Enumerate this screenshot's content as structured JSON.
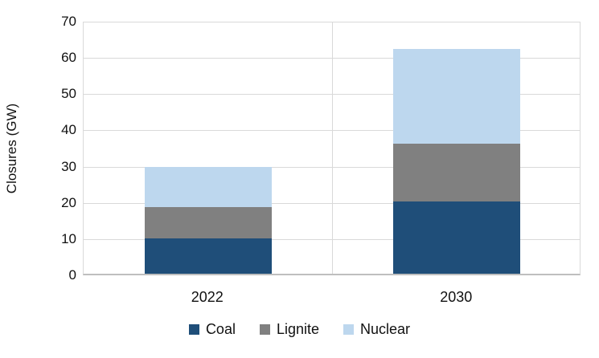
{
  "chart_data": {
    "type": "bar",
    "stacked": true,
    "title": "",
    "xlabel": "",
    "ylabel": "Closures (GW)",
    "ylim": [
      0,
      70
    ],
    "yticks": [
      0,
      10,
      20,
      30,
      40,
      50,
      60,
      70
    ],
    "grid": "horizontal",
    "legend_position": "bottom",
    "categories": [
      "2022",
      "2030"
    ],
    "series": [
      {
        "name": "Coal",
        "color": "#1f4e79",
        "values": [
          9.7,
          20
        ]
      },
      {
        "name": "Lignite",
        "color": "#808080",
        "values": [
          8.8,
          16
        ]
      },
      {
        "name": "Nuclear",
        "color": "#bdd7ee",
        "values": [
          11,
          26
        ]
      }
    ],
    "colors": {
      "gridline": "#d9d9d9",
      "axis_line": "#bfbfbf",
      "text": "#111111",
      "background": "#ffffff"
    }
  }
}
